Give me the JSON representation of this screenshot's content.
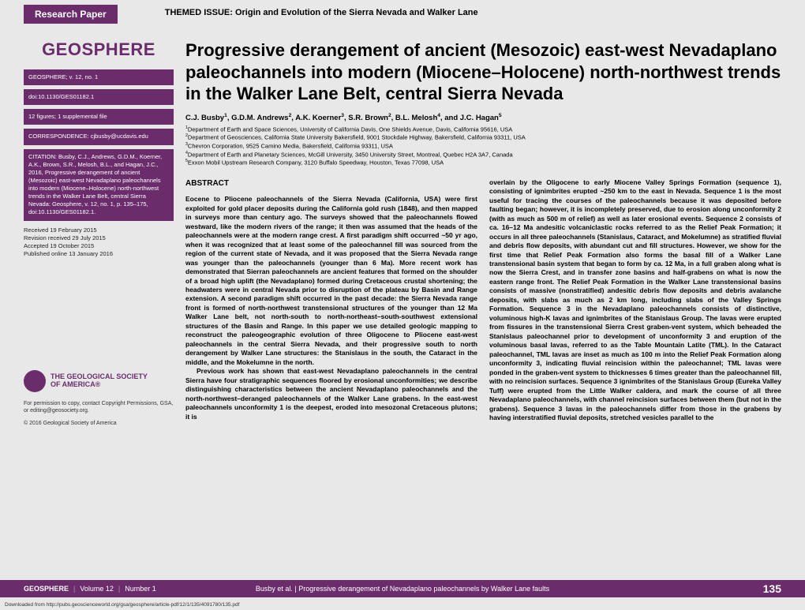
{
  "header": {
    "research_paper_label": "Research Paper",
    "themed_issue": "THEMED ISSUE:  Origin and Evolution of the Sierra Nevada and Walker Lane"
  },
  "sidebar": {
    "journal_name": "GEOSPHERE",
    "volume_info": "GEOSPHERE; v. 12, no. 1",
    "doi": "doi:10.1130/GES01182.1",
    "figures_info": "12 figures; 1 supplemental file",
    "correspondence": "CORRESPONDENCE: cjbusby@ucdavis.edu",
    "citation": "CITATION: Busby, C.J., Andrews, G.D.M., Koerner, A.K., Brown, S.R., Melosh, B.L., and Hagan, J.C., 2016, Progressive derangement of ancient (Mesozoic) east-west Nevadaplano paleochannels into modern (Miocene–Holocene) north-northwest trends in the Walker Lane Belt, central Sierra Nevada: Geosphere, v. 12, no. 1, p. 135–175, doi:10.1130/GES01182.1.",
    "dates": {
      "received": "Received 19 February 2015",
      "revision": "Revision received 29 July 2015",
      "accepted": "Accepted 19 October 2015",
      "published": "Published online 13 January 2016"
    },
    "gsa": {
      "line1": "THE GEOLOGICAL SOCIETY",
      "line2": "OF AMERICA®"
    },
    "permission": "For permission to copy, contact Copyright Permissions, GSA, or editing@geosociety.org.",
    "copyright": "© 2016 Geological Society of America"
  },
  "paper": {
    "title": "Progressive derangement of ancient (Mesozoic) east-west Nevadaplano paleochannels into modern (Miocene–Holocene) north-northwest trends in the Walker Lane Belt, central Sierra Nevada",
    "authors_html": "C.J. Busby<sup>1</sup>, G.D.M. Andrews<sup>2</sup>, A.K. Koerner<sup>3</sup>, S.R. Brown<sup>2</sup>, B.L. Melosh<sup>4</sup>, and J.C. Hagan<sup>5</sup>",
    "affiliations_html": "<sup>1</sup>Department of Earth and Space Sciences, University of California Davis, One Shields Avenue, Davis, California 95616, USA<br><sup>2</sup>Department of Geosciences, California State University Bakersfield, 9001 Stockdale Highway, Bakersfield, California 93311, USA<br><sup>3</sup>Chevron Corporation, 9525 Camino Media, Bakersfield, California 93311, USA<br><sup>4</sup>Department of Earth and Planetary Sciences, McGill University, 3450 University Street, Montreal, Quebec H2A 3A7, Canada<br><sup>5</sup>Exxon Mobil Upstream Research Company, 3120 Buffalo Speedway, Houston, Texas 77098, USA",
    "abstract_heading": "ABSTRACT",
    "abstract_col1_p1": "Eocene to Pliocene paleochannels of the Sierra Nevada (California, USA) were first exploited for gold placer deposits during the California gold rush (1848), and then mapped in surveys more than century ago. The surveys showed that the paleochannels flowed westward, like the modern rivers of the range; it then was assumed that the heads of the paleochannels were at the modern range crest. A first paradigm shift occurred ~50 yr ago, when it was recognized that at least some of the paleochannel fill was sourced from the region of the current state of Nevada, and it was proposed that the Sierra Nevada range was younger than the paleochannels (younger than 6 Ma). More recent work has demonstrated that Sierran paleochannels are ancient features that formed on the shoulder of a broad high uplift (the Nevadaplano) formed during Cretaceous crustal shortening; the headwaters were in central Nevada prior to disruption of the plateau by Basin and Range extension. A second paradigm shift occurred in the past decade: the Sierra Nevada range front is formed of north-northwest transtensional structures of the younger than 12 Ma Walker Lane belt, not north-south to north-northeast–south-southwest extensional structures of the Basin and Range. In this paper we use detailed geologic mapping to reconstruct the paleogeographic evolution of three Oligocene to Pliocene east-west paleochannels in the central Sierra Nevada, and their progressive south to north derangement by Walker Lane structures: the Stanislaus in the south, the Cataract in the middle, and the Mokelumne in the north.",
    "abstract_col1_p2": "Previous work has shown that east-west Nevadaplano paleochannels in the central Sierra have four stratigraphic sequences floored by erosional unconformities; we describe distinguishing characteristics between the ancient Nevadaplano paleochannels and the north-northwest–deranged paleochannels of the Walker Lane grabens. In the east-west paleochannels unconformity 1 is the deepest, eroded into mesozonal Cretaceous plutons; it is",
    "abstract_col2": "overlain by the Oligocene to early Miocene Valley Springs Formation (sequence 1), consisting of ignimbrites erupted ~250 km to the east in Nevada. Sequence 1 is the most useful for tracing the courses of the paleochannels because it was deposited before faulting began; however, it is incompletely preserved, due to erosion along unconformity 2 (with as much as 500 m of relief) as well as later erosional events. Sequence 2 consists of ca. 16–12 Ma andesitic volcaniclastic rocks referred to as the Relief Peak Formation; it occurs in all three paleochannels (Stanislaus, Cataract, and Mokelumne) as stratified fluvial and debris flow deposits, with abundant cut and fill structures. However, we show for the first time that Relief Peak Formation also forms the basal fill of a Walker Lane transtensional basin system that began to form by ca. 12 Ma, in a full graben along what is now the Sierra Crest, and in transfer zone basins and half-grabens on what is now the eastern range front. The Relief Peak Formation in the Walker Lane transtensional basins consists of massive (nonstratified) andesitic debris flow deposits and debris avalanche deposits, with slabs as much as 2 km long, including slabs of the Valley Springs Formation. Sequence 3 in the Nevadaplano paleochannels consists of distinctive, voluminous high-K lavas and ignimbrites of the Stanislaus Group. The lavas were erupted from fissures in the transtensional Sierra Crest graben-vent system, which beheaded the Stanislaus paleochannel prior to development of unconformity 3 and eruption of the voluminous basal lavas, referred to as the Table Mountain Latite (TML). In the Cataract paleochannel, TML lavas are inset as much as 100 m into the Relief Peak Formation along unconformity 3, indicating fluvial reincision within the paleochannel; TML lavas were ponded in the graben-vent system to thicknesses 6 times greater than the paleochannel fill, with no reincision surfaces. Sequence 3 ignimbrites of the Stanislaus Group (Eureka Valley Tuff) were erupted from the Little Walker caldera, and mark the course of all three Nevadaplano paleochannels, with channel reincision surfaces between them (but not in the grabens). Sequence 3 lavas in the paleochannels differ from those in the grabens by having interstratified fluvial deposits, stretched vesicles parallel to the"
  },
  "footer": {
    "journal": "GEOSPHERE",
    "volume": "Volume 12",
    "number": "Number 1",
    "center": "Busby et al.  |  Progressive derangement of Nevadaplano paleochannels by Walker Lane faults",
    "page": "135",
    "download": "Downloaded from http://pubs.geoscienceworld.org/gsa/geosphere/article-pdf/12/1/135/4091780/135.pdf"
  },
  "colors": {
    "brand": "#6b2c6b",
    "bg": "#e8e8e8"
  }
}
